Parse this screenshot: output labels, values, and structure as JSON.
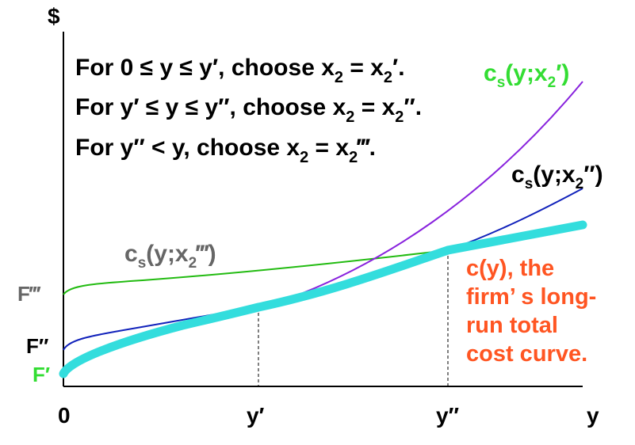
{
  "axes": {
    "y_axis_label": "$",
    "x_axis_label": "y",
    "origin_label": "0",
    "x_ticks": {
      "y_prime": "y′",
      "y_double_prime": "y″"
    }
  },
  "rules": [
    {
      "lead": "For 0 ≤ y ≤ y′, choose x",
      "sub": "2",
      "mid": " = x",
      "sub2": "2",
      "tail": "′."
    },
    {
      "lead": "For y′ ≤ y ≤ y″, choose x",
      "sub": "2",
      "mid": " = x",
      "sub2": "2",
      "tail": "″."
    },
    {
      "lead": "For y″ < y, choose x",
      "sub": "2",
      "mid": " = x",
      "sub2": "2",
      "tail": "‴."
    }
  ],
  "curves": {
    "cs_x2_prime": {
      "c": "c",
      "s": "s",
      "arg": "(y;x",
      "two": "2",
      "end": "′)",
      "color": "#33dd33"
    },
    "cs_x2_double": {
      "c": "c",
      "s": "s",
      "arg": "(y;x",
      "two": "2",
      "end": "″)",
      "color": "#000000"
    },
    "cs_x2_triple": {
      "c": "c",
      "s": "s",
      "arg": "(y;x",
      "two": "2",
      "end": "‴)",
      "color": "#666666"
    }
  },
  "fixed_costs": {
    "f_triple": {
      "text": "F‴",
      "color": "#666666"
    },
    "f_double": {
      "text": "F″",
      "color": "#000000"
    },
    "f_prime": {
      "text": "F′",
      "color": "#33dd33"
    }
  },
  "long_run_note": {
    "lines": [
      "c(y), the",
      "firm’ s long-",
      "run total",
      "cost curve."
    ],
    "color": "#ff5522"
  },
  "colors": {
    "curve_x2_prime": "#8822dd",
    "curve_x2_double": "#1122bb",
    "curve_x2_triple": "#22bb11",
    "long_run_envelope": "#33dddd"
  }
}
